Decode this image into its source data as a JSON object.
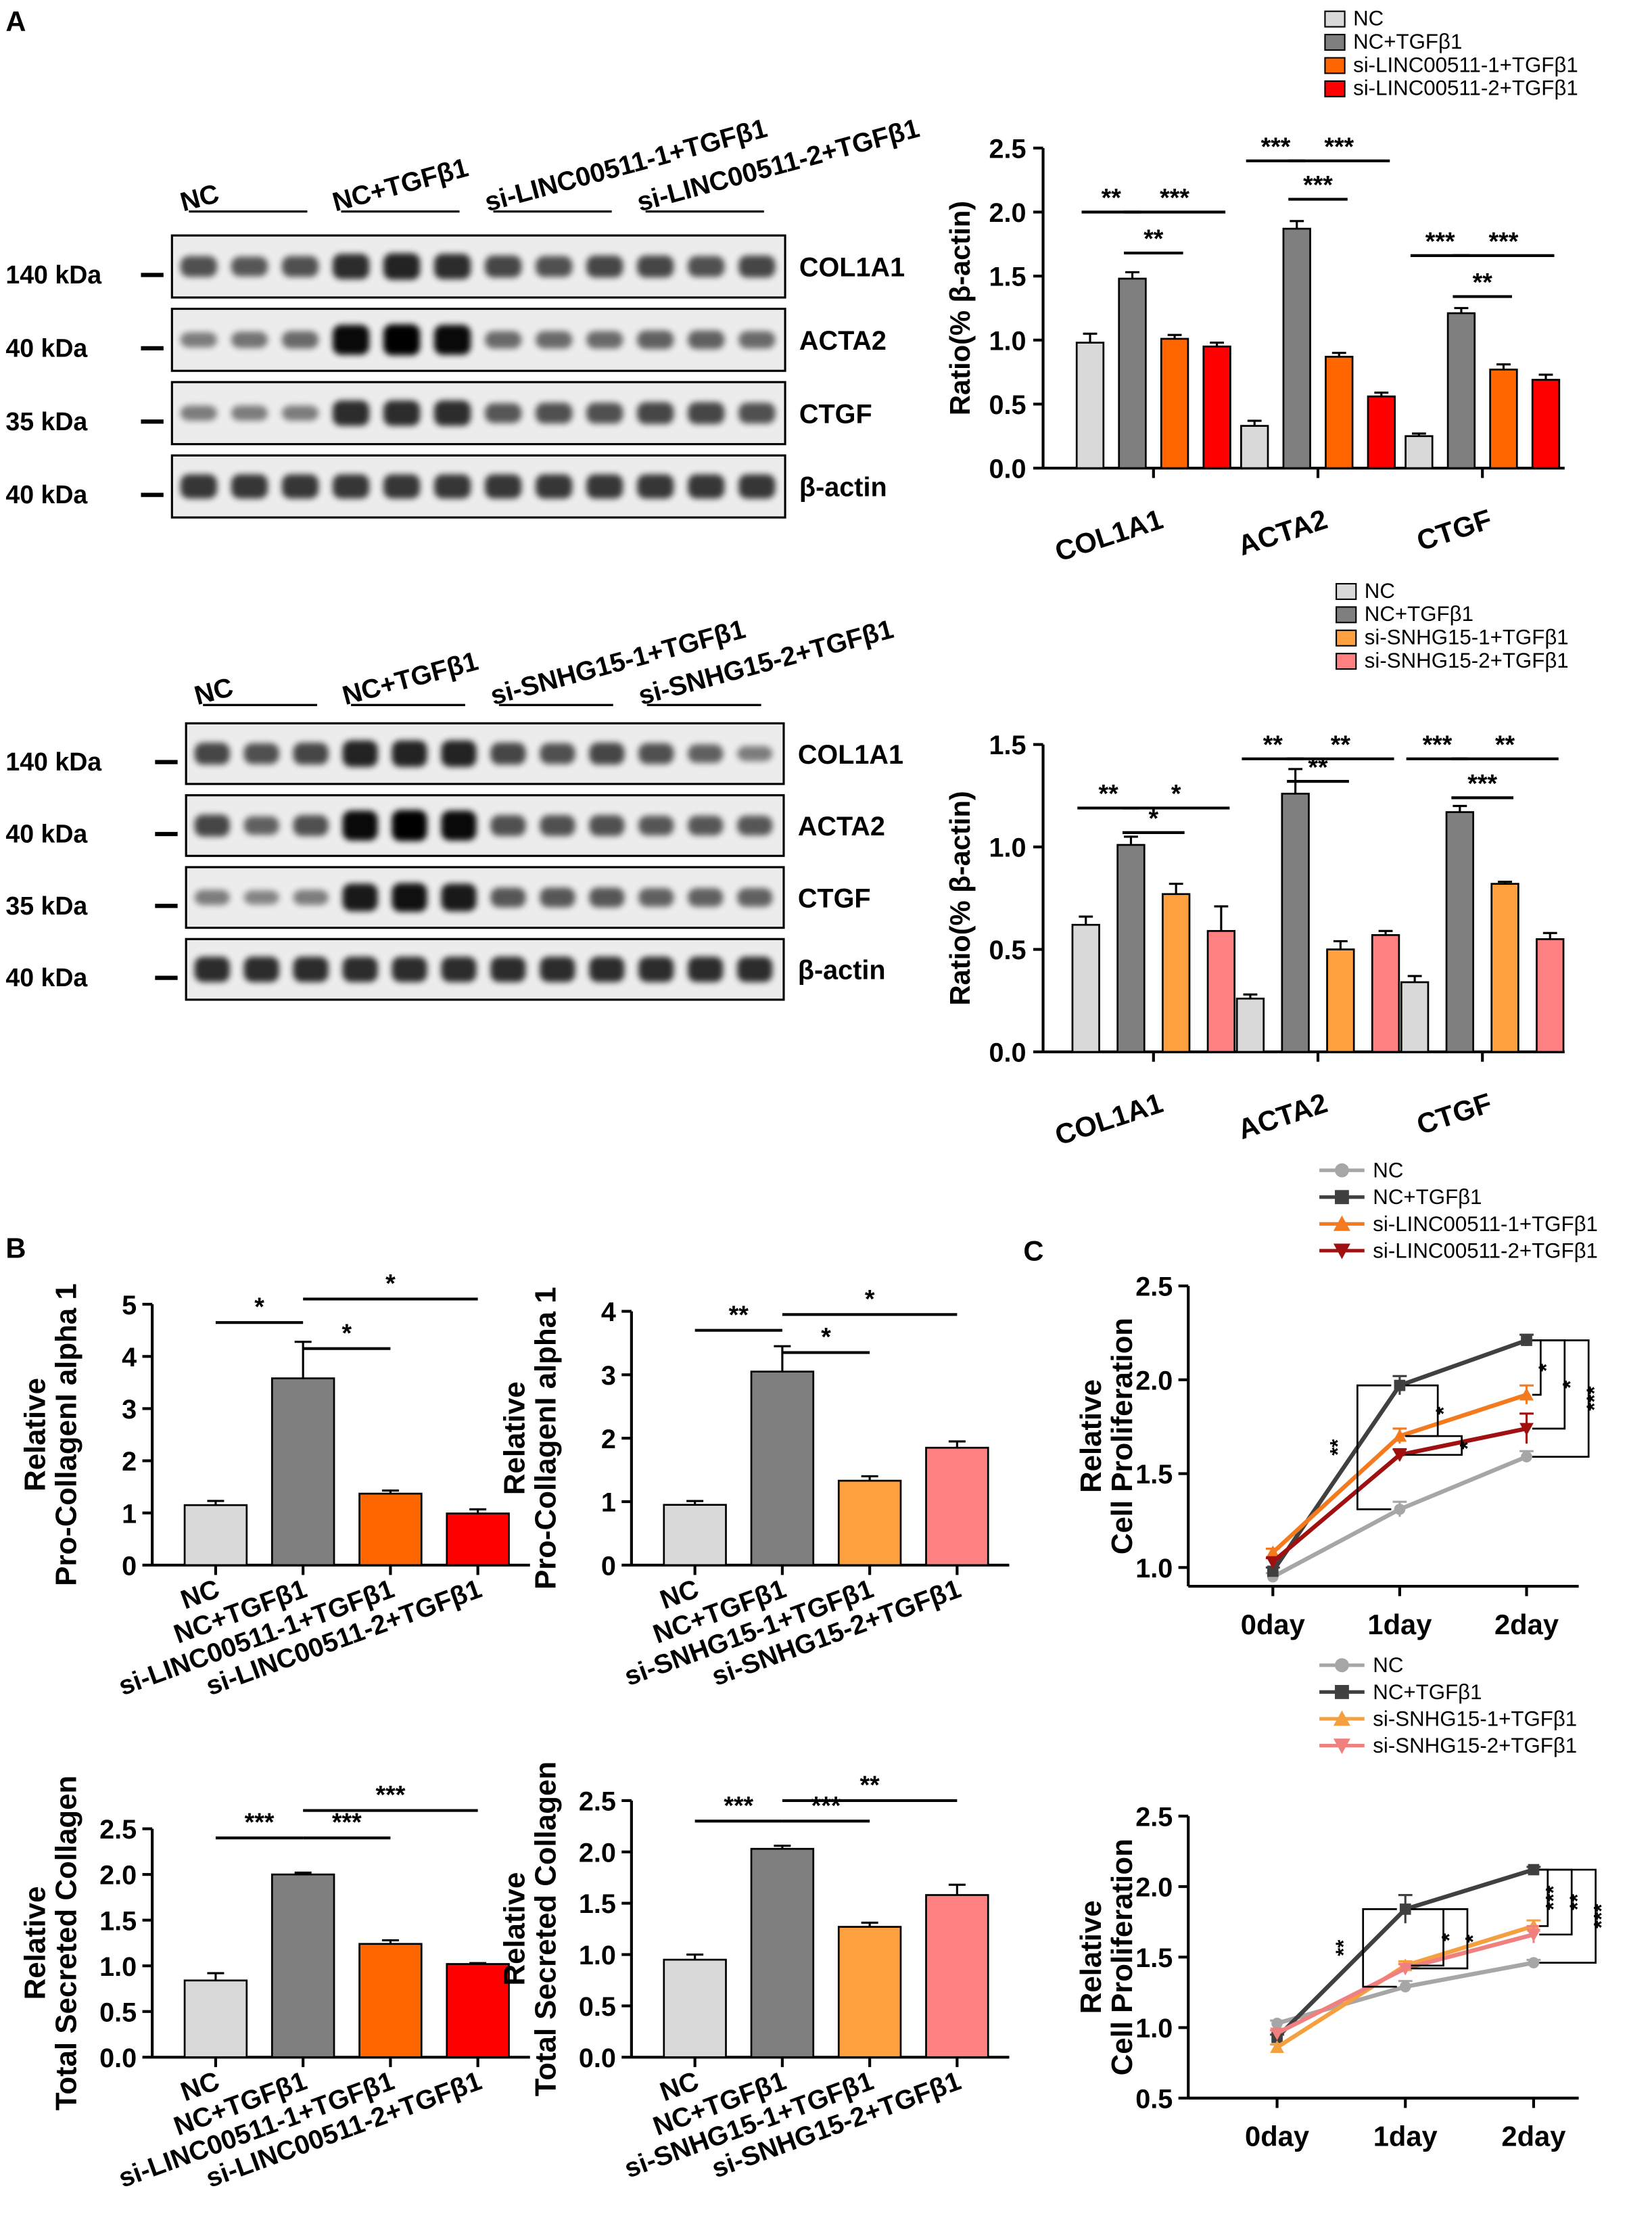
{
  "panel_labels": {
    "a": "A",
    "b": "B",
    "c": "C"
  },
  "colors": {
    "nc": "#d9d9d9",
    "nc_tgf": "#7f7f7f",
    "linc1": "#ff6600",
    "linc2": "#ff0000",
    "snhg1": "#ffa040",
    "snhg2": "#ff8080",
    "line_nc": "#a6a6a6",
    "line_nctgf": "#404040",
    "line_linc1": "#f47a1f",
    "line_linc2": "#a01010",
    "line_snhg1": "#f5a040",
    "line_snhg2": "#f08080"
  },
  "western": [
    {
      "groups": [
        "NC",
        "NC+TGFβ1",
        "si-LINC00511-1+TGFβ1",
        "si-LINC00511-2+TGFβ1"
      ],
      "blots": [
        {
          "protein": "COL1A1",
          "kda": "140 kDa",
          "intensity": [
            0.55,
            0.5,
            0.55,
            0.75,
            0.8,
            0.75,
            0.6,
            0.55,
            0.6,
            0.6,
            0.55,
            0.6
          ]
        },
        {
          "protein": "ACTA2",
          "kda": "40 kDa",
          "intensity": [
            0.3,
            0.35,
            0.4,
            0.95,
            1.0,
            0.95,
            0.4,
            0.4,
            0.4,
            0.45,
            0.45,
            0.4
          ]
        },
        {
          "protein": "CTGF",
          "kda": "35 kDa",
          "intensity": [
            0.3,
            0.3,
            0.3,
            0.75,
            0.75,
            0.75,
            0.5,
            0.55,
            0.55,
            0.6,
            0.6,
            0.55
          ]
        },
        {
          "protein": "β-actin",
          "kda": "40 kDa",
          "intensity": [
            0.7,
            0.7,
            0.7,
            0.7,
            0.7,
            0.7,
            0.7,
            0.7,
            0.7,
            0.7,
            0.7,
            0.7
          ]
        }
      ]
    },
    {
      "groups": [
        "NC",
        "NC+TGFβ1",
        "si-SNHG15-1+TGFβ1",
        "si-SNHG15-2+TGFβ1"
      ],
      "blots": [
        {
          "protein": "COL1A1",
          "kda": "140 kDa",
          "intensity": [
            0.6,
            0.55,
            0.6,
            0.8,
            0.8,
            0.8,
            0.6,
            0.55,
            0.6,
            0.55,
            0.45,
            0.3
          ]
        },
        {
          "protein": "ACTA2",
          "kda": "40 kDa",
          "intensity": [
            0.6,
            0.45,
            0.55,
            0.95,
            1.0,
            0.95,
            0.55,
            0.55,
            0.55,
            0.5,
            0.5,
            0.5
          ]
        },
        {
          "protein": "CTGF",
          "kda": "35 kDa",
          "intensity": [
            0.3,
            0.25,
            0.3,
            0.85,
            0.9,
            0.85,
            0.5,
            0.5,
            0.5,
            0.45,
            0.45,
            0.45
          ]
        },
        {
          "protein": "β-actin",
          "kda": "40 kDa",
          "intensity": [
            0.75,
            0.75,
            0.75,
            0.75,
            0.75,
            0.75,
            0.75,
            0.75,
            0.75,
            0.75,
            0.75,
            0.75
          ]
        }
      ]
    }
  ],
  "chart_data": [
    {
      "id": "a1",
      "type": "bar",
      "ylabel": "Ratio(% β-actin)",
      "ylim": [
        0,
        2.5
      ],
      "yticks": [
        "0.0",
        "0.5",
        "1.0",
        "1.5",
        "2.0",
        "2.5"
      ],
      "categories": [
        "COL1A1",
        "ACTA2",
        "CTGF"
      ],
      "series": [
        {
          "name": "NC",
          "values": [
            0.98,
            0.33,
            0.25
          ],
          "errors": [
            0.07,
            0.04,
            0.02
          ]
        },
        {
          "name": "NC+TGFβ1",
          "values": [
            1.48,
            1.87,
            1.21
          ],
          "errors": [
            0.05,
            0.06,
            0.04
          ]
        },
        {
          "name": "si-LINC00511-1+TGFβ1",
          "values": [
            1.01,
            0.87,
            0.77
          ],
          "errors": [
            0.03,
            0.03,
            0.04
          ]
        },
        {
          "name": "si-LINC00511-2+TGFβ1",
          "values": [
            0.95,
            0.56,
            0.69
          ],
          "errors": [
            0.03,
            0.03,
            0.04
          ]
        }
      ],
      "significance": [
        {
          "cat": 0,
          "from": 0,
          "to": 1,
          "level": 2.0,
          "text": "**"
        },
        {
          "cat": 0,
          "from": 1,
          "to": 3,
          "level": 2.0,
          "text": "***"
        },
        {
          "cat": 0,
          "from": 1,
          "to": 2,
          "level": 1.68,
          "text": "**"
        },
        {
          "cat": 1,
          "from": 0,
          "to": 1,
          "level": 2.4,
          "text": "***"
        },
        {
          "cat": 1,
          "from": 1,
          "to": 3,
          "level": 2.4,
          "text": "***"
        },
        {
          "cat": 1,
          "from": 1,
          "to": 2,
          "level": 2.1,
          "text": "***"
        },
        {
          "cat": 2,
          "from": 0,
          "to": 1,
          "level": 1.66,
          "text": "***"
        },
        {
          "cat": 2,
          "from": 1,
          "to": 3,
          "level": 1.66,
          "text": "***"
        },
        {
          "cat": 2,
          "from": 1,
          "to": 2,
          "level": 1.34,
          "text": "**"
        }
      ]
    },
    {
      "id": "a2",
      "type": "bar",
      "ylabel": "Ratio(% β-actin)",
      "ylim": [
        0,
        1.5
      ],
      "yticks": [
        "0.0",
        "0.5",
        "1.0",
        "1.5"
      ],
      "categories": [
        "COL1A1",
        "ACTA2",
        "CTGF"
      ],
      "series": [
        {
          "name": "NC",
          "values": [
            0.62,
            0.26,
            0.34
          ],
          "errors": [
            0.04,
            0.02,
            0.03
          ]
        },
        {
          "name": "NC+TGFβ1",
          "values": [
            1.01,
            1.26,
            1.17
          ],
          "errors": [
            0.04,
            0.12,
            0.03
          ]
        },
        {
          "name": "si-SNHG15-1+TGFβ1",
          "values": [
            0.77,
            0.5,
            0.82
          ],
          "errors": [
            0.05,
            0.04,
            0.01
          ]
        },
        {
          "name": "si-SNHG15-2+TGFβ1",
          "values": [
            0.59,
            0.57,
            0.55
          ],
          "errors": [
            0.12,
            0.02,
            0.03
          ]
        }
      ],
      "significance": [
        {
          "cat": 0,
          "from": 0,
          "to": 1,
          "level": 1.19,
          "text": "**"
        },
        {
          "cat": 0,
          "from": 1,
          "to": 3,
          "level": 1.19,
          "text": "*"
        },
        {
          "cat": 0,
          "from": 1,
          "to": 2,
          "level": 1.07,
          "text": "*"
        },
        {
          "cat": 1,
          "from": 0,
          "to": 1,
          "level": 1.43,
          "text": "**"
        },
        {
          "cat": 1,
          "from": 1,
          "to": 3,
          "level": 1.43,
          "text": "**"
        },
        {
          "cat": 1,
          "from": 1,
          "to": 2,
          "level": 1.32,
          "text": "**"
        },
        {
          "cat": 2,
          "from": 0,
          "to": 1,
          "level": 1.43,
          "text": "***"
        },
        {
          "cat": 2,
          "from": 1,
          "to": 3,
          "level": 1.43,
          "text": "**"
        },
        {
          "cat": 2,
          "from": 1,
          "to": 2,
          "level": 1.24,
          "text": "***"
        }
      ]
    },
    {
      "id": "b1",
      "type": "bar",
      "ylabel": [
        "Relative",
        "Pro-CollagenI alpha 1"
      ],
      "ylim": [
        0,
        5
      ],
      "yticks": [
        "0",
        "1",
        "2",
        "3",
        "4",
        "5"
      ],
      "categories": [
        "NC",
        "NC+TGFβ1",
        "si-LINC00511-1+TGFβ1",
        "si-LINC00511-2+TGFβ1"
      ],
      "values": [
        1.15,
        3.58,
        1.37,
        0.99
      ],
      "errors": [
        0.08,
        0.7,
        0.06,
        0.08
      ],
      "significance": [
        {
          "from": 0,
          "to": 1,
          "level": 4.65,
          "text": "*"
        },
        {
          "from": 1,
          "to": 2,
          "level": 4.15,
          "text": "*"
        },
        {
          "from": 1,
          "to": 3,
          "level": 5.1,
          "text": "*"
        }
      ]
    },
    {
      "id": "b2",
      "type": "bar",
      "ylabel": [
        "Relative",
        "Pro-CollagenI alpha 1"
      ],
      "ylim": [
        0,
        4
      ],
      "yticks": [
        "0",
        "1",
        "2",
        "3",
        "4"
      ],
      "categories": [
        "NC",
        "NC+TGFβ1",
        "si-SNHG15-1+TGFβ1",
        "si-SNHG15-2+TGFβ1"
      ],
      "values": [
        0.95,
        3.05,
        1.33,
        1.85
      ],
      "errors": [
        0.06,
        0.4,
        0.07,
        0.1
      ],
      "significance": [
        {
          "from": 0,
          "to": 1,
          "level": 3.7,
          "text": "**"
        },
        {
          "from": 1,
          "to": 2,
          "level": 3.35,
          "text": "*"
        },
        {
          "from": 1,
          "to": 3,
          "level": 3.95,
          "text": "*"
        }
      ]
    },
    {
      "id": "b3",
      "type": "bar",
      "ylabel": [
        "Relative",
        "Total Secreted Collagen"
      ],
      "ylim": [
        0,
        2.5
      ],
      "yticks": [
        "0.0",
        "0.5",
        "1.0",
        "1.5",
        "2.0",
        "2.5"
      ],
      "categories": [
        "NC",
        "NC+TGFβ1",
        "si-LINC00511-1+TGFβ1",
        "si-LINC00511-2+TGFβ1"
      ],
      "values": [
        0.84,
        2.0,
        1.24,
        1.02
      ],
      "errors": [
        0.08,
        0.02,
        0.04,
        0.01
      ],
      "significance": [
        {
          "from": 0,
          "to": 1,
          "level": 2.4,
          "text": "***"
        },
        {
          "from": 1,
          "to": 2,
          "level": 2.4,
          "text": "***"
        },
        {
          "from": 1,
          "to": 3,
          "level": 2.7,
          "text": "***"
        }
      ]
    },
    {
      "id": "b4",
      "type": "bar",
      "ylabel": [
        "Relative",
        "Total Secreted Collagen"
      ],
      "ylim": [
        0,
        2.5
      ],
      "yticks": [
        "0.0",
        "0.5",
        "1.0",
        "1.5",
        "2.0",
        "2.5"
      ],
      "categories": [
        "NC",
        "NC+TGFβ1",
        "si-SNHG15-1+TGFβ1",
        "si-SNHG15-2+TGFβ1"
      ],
      "values": [
        0.95,
        2.03,
        1.27,
        1.58
      ],
      "errors": [
        0.05,
        0.03,
        0.04,
        0.1
      ],
      "significance": [
        {
          "from": 0,
          "to": 1,
          "level": 2.3,
          "text": "***"
        },
        {
          "from": 1,
          "to": 2,
          "level": 2.3,
          "text": "***"
        },
        {
          "from": 1,
          "to": 3,
          "level": 2.5,
          "text": "**"
        }
      ]
    },
    {
      "id": "c1",
      "type": "line",
      "ylabel": [
        "Relative",
        "Cell Proliferation"
      ],
      "ylim": [
        0.9,
        2.5
      ],
      "yticks": [
        "1.0",
        "1.5",
        "2.0",
        "2.5"
      ],
      "x": [
        "0day",
        "1day",
        "2day"
      ],
      "series": [
        {
          "name": "NC",
          "marker": "circle",
          "values": [
            0.95,
            1.31,
            1.59
          ],
          "errors": [
            0.02,
            0.04,
            0.03
          ]
        },
        {
          "name": "NC+TGFβ1",
          "marker": "square",
          "values": [
            0.98,
            1.97,
            2.21
          ],
          "errors": [
            0.02,
            0.05,
            0.03
          ]
        },
        {
          "name": "si-LINC00511-1+TGFβ1",
          "marker": "up",
          "values": [
            1.08,
            1.7,
            1.92
          ],
          "errors": [
            0.02,
            0.04,
            0.05
          ]
        },
        {
          "name": "si-LINC00511-2+TGFβ1",
          "marker": "down",
          "values": [
            1.03,
            1.6,
            1.74
          ],
          "errors": [
            0.02,
            0.03,
            0.08
          ]
        }
      ],
      "significance": [
        {
          "x": 1,
          "from": 0,
          "to": 1,
          "text": "**"
        },
        {
          "x": 1,
          "from": 1,
          "to": 2,
          "text": "*"
        },
        {
          "x": 1,
          "from": 2,
          "to": 3,
          "text": "*"
        },
        {
          "x": 2,
          "from": 1,
          "to": 2,
          "text": "*"
        },
        {
          "x": 2,
          "from": 1,
          "to": 3,
          "text": "*"
        },
        {
          "x": 2,
          "from": 1,
          "to": 0,
          "text": "***"
        }
      ]
    },
    {
      "id": "c2",
      "type": "line",
      "ylabel": [
        "Relative",
        "Cell Proliferation"
      ],
      "ylim": [
        0.5,
        2.5
      ],
      "yticks": [
        "0.5",
        "1.0",
        "1.5",
        "2.0",
        "2.5"
      ],
      "x": [
        "0day",
        "1day",
        "2day"
      ],
      "series": [
        {
          "name": "NC",
          "marker": "circle",
          "values": [
            1.03,
            1.29,
            1.46
          ],
          "errors": [
            0.02,
            0.04,
            0.02
          ]
        },
        {
          "name": "NC+TGFβ1",
          "marker": "square",
          "values": [
            0.93,
            1.84,
            2.12
          ],
          "errors": [
            0.02,
            0.1,
            0.02
          ]
        },
        {
          "name": "si-SNHG15-1+TGFβ1",
          "marker": "up",
          "values": [
            0.86,
            1.44,
            1.72
          ],
          "errors": [
            0.02,
            0.03,
            0.04
          ]
        },
        {
          "name": "si-SNHG15-2+TGFβ1",
          "marker": "down",
          "values": [
            0.96,
            1.42,
            1.66
          ],
          "errors": [
            0.02,
            0.03,
            0.06
          ]
        }
      ],
      "significance": [
        {
          "x": 1,
          "from": 0,
          "to": 1,
          "text": "**"
        },
        {
          "x": 1,
          "from": 1,
          "to": 2,
          "text": "*"
        },
        {
          "x": 1,
          "from": 1,
          "to": 3,
          "text": "*"
        },
        {
          "x": 2,
          "from": 1,
          "to": 2,
          "text": "***"
        },
        {
          "x": 2,
          "from": 1,
          "to": 3,
          "text": "**"
        },
        {
          "x": 2,
          "from": 1,
          "to": 0,
          "text": "***"
        }
      ]
    }
  ]
}
